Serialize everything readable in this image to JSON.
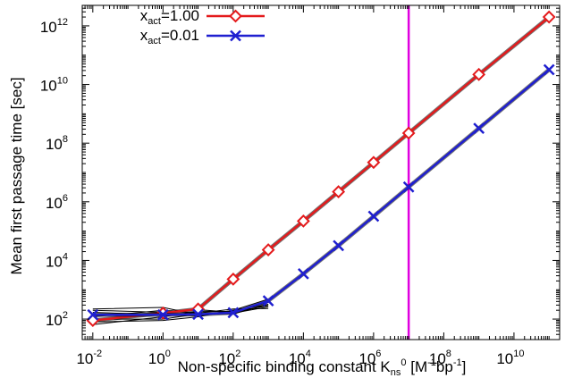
{
  "chart_data": {
    "type": "line",
    "title": "",
    "xlabel": {
      "base": "Non-specific binding constant K",
      "sub": "ns",
      "sup": "0",
      "unit_open": " [M",
      "unit_sup1": "-1",
      "unit_mid": "bp",
      "unit_sup2": "-1",
      "unit_close": "]"
    },
    "ylabel": "Mean first passage time [sec]",
    "x_scale": "log10",
    "y_scale": "log10",
    "xlim": [
      0.005,
      200000000000.0
    ],
    "ylim": [
      20,
      5000000000000.0
    ],
    "x_ticks": [
      {
        "value": 0.01,
        "base": "10",
        "exp": "-2"
      },
      {
        "value": 1,
        "base": "10",
        "exp": "0"
      },
      {
        "value": 100,
        "base": "10",
        "exp": "2"
      },
      {
        "value": 10000,
        "base": "10",
        "exp": "4"
      },
      {
        "value": 1000000,
        "base": "10",
        "exp": "6"
      },
      {
        "value": 100000000,
        "base": "10",
        "exp": "8"
      },
      {
        "value": 10000000000,
        "base": "10",
        "exp": "10"
      }
    ],
    "y_ticks": [
      {
        "value": 100,
        "base": "10",
        "exp": "2"
      },
      {
        "value": 10000,
        "base": "10",
        "exp": "4"
      },
      {
        "value": 1000000,
        "base": "10",
        "exp": "6"
      },
      {
        "value": 100000000,
        "base": "10",
        "exp": "8"
      },
      {
        "value": 10000000000,
        "base": "10",
        "exp": "10"
      },
      {
        "value": 1000000000000,
        "base": "10",
        "exp": "12"
      }
    ],
    "series": [
      {
        "name": "x_act=1.00",
        "name_base": "x",
        "name_sub": "act",
        "name_rest": "=1.00",
        "color": "#e41a1c",
        "marker": "diamond",
        "x": [
          0.01,
          1,
          10,
          100,
          1000,
          10000,
          100000,
          1000000,
          10000000,
          1000000000,
          100000000000
        ],
        "y": [
          90,
          160,
          220,
          2300,
          23000,
          220000,
          2200000,
          22000000,
          220000000,
          22000000000,
          2000000000000
        ]
      },
      {
        "name": "x_act=0.01",
        "name_base": "x",
        "name_sub": "act",
        "name_rest": "=0.01",
        "color": "#1f1fd0",
        "marker": "x",
        "x": [
          0.01,
          1,
          10,
          100,
          1000,
          10000,
          100000,
          1000000,
          10000000,
          1000000000,
          100000000000
        ],
        "y": [
          140,
          140,
          145,
          165,
          420,
          3500,
          32000,
          320000,
          3200000,
          320000000,
          32000000000
        ]
      }
    ],
    "background_traces": [
      {
        "x": [
          0.01,
          1,
          10,
          100,
          1000
        ],
        "y": [
          65,
          120,
          185,
          180,
          370
        ]
      },
      {
        "x": [
          0.01,
          1,
          10,
          100,
          1000
        ],
        "y": [
          100,
          100,
          150,
          150,
          320
        ]
      },
      {
        "x": [
          0.01,
          1,
          10,
          100,
          1000
        ],
        "y": [
          170,
          140,
          130,
          200,
          310
        ]
      },
      {
        "x": [
          0.01,
          1,
          10,
          100,
          1000
        ],
        "y": [
          220,
          250,
          140,
          160,
          260
        ]
      },
      {
        "x": [
          0.01,
          1,
          10,
          100,
          1000
        ],
        "y": [
          120,
          200,
          160,
          220,
          230
        ]
      },
      {
        "x": [
          0.01,
          1,
          10,
          100,
          1000
        ],
        "y": [
          80,
          90,
          120,
          200,
          480
        ]
      },
      {
        "x": [
          0.01,
          1,
          10,
          100,
          1000
        ],
        "y": [
          200,
          170,
          210,
          170,
          290
        ]
      }
    ],
    "vertical_line": {
      "x": 10000000,
      "color": "#e000e0"
    },
    "legend_position": "top-left"
  }
}
